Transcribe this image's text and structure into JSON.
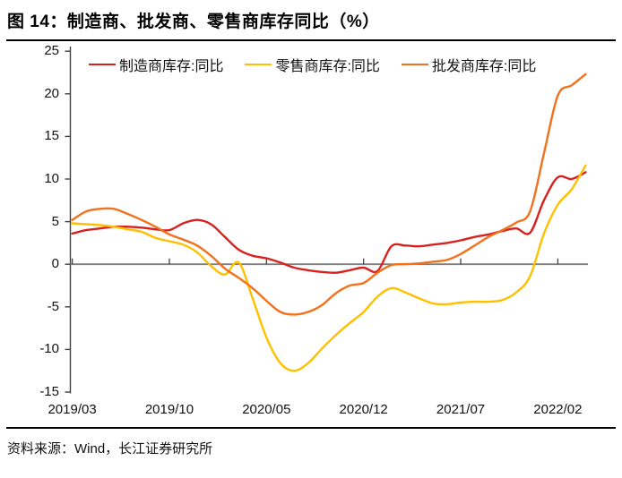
{
  "figure": {
    "title": "图 14：制造商、批发商、零售商库存同比（%）",
    "source": "资料来源：Wind，长江证券研究所"
  },
  "colors": {
    "manufacturer_red": "#d7211e",
    "retailer_yellow": "#ffc000",
    "wholesaler_orange": "#f2711c",
    "y_axis": "#404040",
    "zero_axis": "#7f7f7f",
    "text": "#111111"
  },
  "chart_data": {
    "type": "line",
    "title": "制造商、批发商、零售商库存同比（%）",
    "xlabel": "",
    "ylabel": "",
    "ylim": [
      -15,
      25
    ],
    "y_ticks": [
      25,
      20,
      15,
      10,
      5,
      0,
      -5,
      -10,
      -15
    ],
    "grid": false,
    "legend_position": "top",
    "x": [
      "2019/03",
      "2019/04",
      "2019/05",
      "2019/06",
      "2019/07",
      "2019/08",
      "2019/09",
      "2019/10",
      "2019/11",
      "2019/12",
      "2020/01",
      "2020/02",
      "2020/03",
      "2020/04",
      "2020/05",
      "2020/06",
      "2020/07",
      "2020/08",
      "2020/09",
      "2020/10",
      "2020/11",
      "2020/12",
      "2021/01",
      "2021/02",
      "2021/03",
      "2021/04",
      "2021/05",
      "2021/06",
      "2021/07",
      "2021/08",
      "2021/09",
      "2021/10",
      "2021/11",
      "2021/12",
      "2022/01",
      "2022/02",
      "2022/03",
      "2022/04"
    ],
    "x_tick_labels": [
      "2019/03",
      "2019/10",
      "2020/05",
      "2020/12",
      "2021/07",
      "2022/02"
    ],
    "x_tick_indices": [
      0,
      7,
      14,
      21,
      28,
      35
    ],
    "series": [
      {
        "name": "制造商库存:同比",
        "color": "#d7211e",
        "values": [
          3.6,
          4.0,
          4.2,
          4.4,
          4.4,
          4.3,
          4.1,
          4.0,
          4.8,
          5.2,
          4.7,
          3.2,
          1.7,
          1.0,
          0.7,
          0.2,
          -0.4,
          -0.7,
          -0.9,
          -1.0,
          -0.7,
          -0.4,
          -0.8,
          2.1,
          2.2,
          2.1,
          2.3,
          2.5,
          2.8,
          3.2,
          3.5,
          3.9,
          4.2,
          3.7,
          7.5,
          10.2,
          10.0,
          10.8
        ]
      },
      {
        "name": "零售商库存:同比",
        "color": "#ffc000",
        "values": [
          4.8,
          4.7,
          4.6,
          4.4,
          4.1,
          3.8,
          3.1,
          2.7,
          2.3,
          1.4,
          -0.2,
          -1.2,
          0.2,
          -4.0,
          -8.6,
          -11.6,
          -12.5,
          -11.6,
          -9.9,
          -8.3,
          -6.9,
          -5.6,
          -3.8,
          -2.8,
          -3.3,
          -4.0,
          -4.6,
          -4.7,
          -4.5,
          -4.4,
          -4.4,
          -4.2,
          -3.3,
          -1.4,
          3.6,
          7.0,
          8.8,
          11.6
        ]
      },
      {
        "name": "批发商库存:同比",
        "color": "#f2711c",
        "values": [
          5.2,
          6.2,
          6.5,
          6.5,
          5.9,
          5.2,
          4.4,
          3.5,
          2.9,
          2.2,
          1.0,
          -0.5,
          -1.6,
          -2.8,
          -4.3,
          -5.6,
          -5.9,
          -5.6,
          -4.8,
          -3.4,
          -2.5,
          -2.2,
          -1.0,
          -0.1,
          0.0,
          0.1,
          0.3,
          0.5,
          1.2,
          2.2,
          3.2,
          4.0,
          4.9,
          6.2,
          13.0,
          19.8,
          21.0,
          22.3
        ]
      }
    ]
  }
}
